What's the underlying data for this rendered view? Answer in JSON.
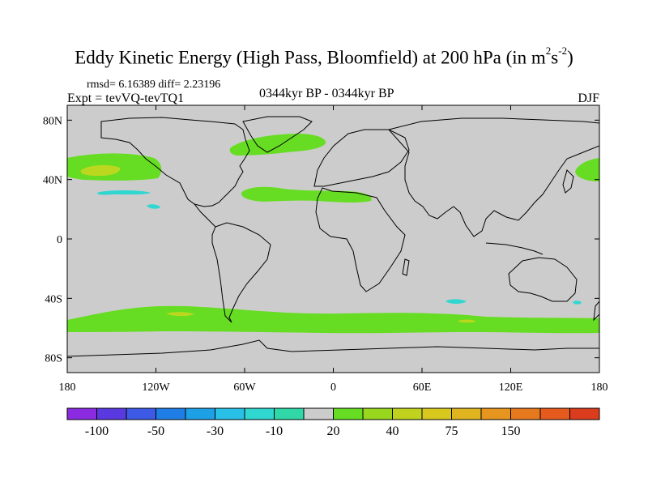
{
  "title": {
    "main": "Eddy Kinetic Energy (High Pass, Bloomfield) at 200 hPa (in m",
    "sup1": "2",
    "mid": "s",
    "sup2": "-2",
    "end": ")"
  },
  "rmsd_line": "rmsd= 6.16389 diff= 2.23196",
  "expt_line": "Expt = tevVQ-tevTQ1",
  "center_label": "0344kyr BP - 0344kyr BP",
  "season": "DJF",
  "map": {
    "projection": "cylindrical-equidistant",
    "lon_range": [
      -180,
      180
    ],
    "lat_range": [
      -90,
      90
    ],
    "background_color": "#cccccc",
    "lat_ticks": [
      {
        "value": 80,
        "label": "80N"
      },
      {
        "value": 40,
        "label": "40N"
      },
      {
        "value": 0,
        "label": "0"
      },
      {
        "value": -40,
        "label": "40S"
      },
      {
        "value": -80,
        "label": "80S"
      }
    ],
    "lon_ticks": [
      {
        "value": -180,
        "label": "180"
      },
      {
        "value": -120,
        "label": "120W"
      },
      {
        "value": -60,
        "label": "60W"
      },
      {
        "value": 0,
        "label": "0"
      },
      {
        "value": 60,
        "label": "60E"
      },
      {
        "value": 120,
        "label": "120E"
      },
      {
        "value": 180,
        "label": "180"
      }
    ]
  },
  "colorbar": {
    "colors": [
      "#8a2be2",
      "#5a3ae0",
      "#3c5ae6",
      "#1e7ee6",
      "#1ea0e6",
      "#28c0e6",
      "#30d6d0",
      "#30d8a8",
      "#cccccc",
      "#66dd22",
      "#99d61e",
      "#c0d21e",
      "#d8c81e",
      "#e0b41e",
      "#e6961e",
      "#e6781e",
      "#e65a1e",
      "#dc3c1e"
    ],
    "labels": [
      {
        "boundary": 1,
        "text": "-100"
      },
      {
        "boundary": 3,
        "text": "-50"
      },
      {
        "boundary": 5,
        "text": "-30"
      },
      {
        "boundary": 7,
        "text": "-10"
      },
      {
        "boundary": 9,
        "text": "20"
      },
      {
        "boundary": 11,
        "text": "40"
      },
      {
        "boundary": 13,
        "text": "75"
      },
      {
        "boundary": 15,
        "text": "150"
      }
    ]
  },
  "fields": {
    "green_color": "#66dd22",
    "yellow_color": "#bcd81e",
    "cyan_color": "#30d6d0"
  }
}
